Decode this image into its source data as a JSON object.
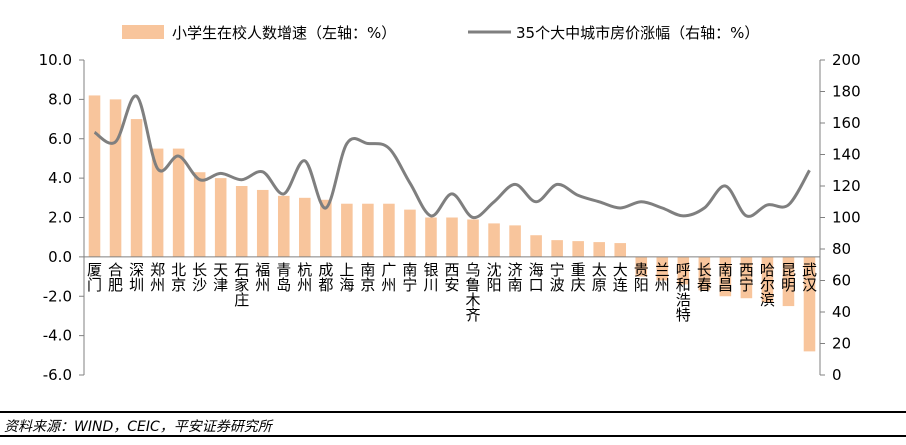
{
  "chart_data": {
    "type": "bar+line",
    "legend": {
      "position": "top",
      "bar_label": "小学生在校人数增速（左轴：%）",
      "line_label": "35个大中城市房价涨幅（右轴：%）"
    },
    "categories": [
      "厦门",
      "合肥",
      "深圳",
      "郑州",
      "北京",
      "长沙",
      "天津",
      "石家庄",
      "福州",
      "青岛",
      "杭州",
      "成都",
      "上海",
      "南京",
      "广州",
      "南宁",
      "银川",
      "西安",
      "乌鲁木齐",
      "沈阳",
      "济南",
      "海口",
      "宁波",
      "重庆",
      "太原",
      "大连",
      "贵阳",
      "兰州",
      "呼和浩特",
      "长春",
      "南昌",
      "西宁",
      "哈尔滨",
      "昆明",
      "武汉"
    ],
    "series": [
      {
        "name": "小学生在校人数增速（左轴：%）",
        "axis": "left",
        "kind": "bar",
        "values": [
          8.2,
          8.0,
          7.0,
          5.5,
          5.5,
          4.3,
          4.0,
          3.6,
          3.4,
          3.1,
          3.0,
          2.9,
          2.7,
          2.7,
          2.7,
          2.4,
          2.0,
          2.0,
          1.9,
          1.7,
          1.6,
          1.1,
          0.85,
          0.8,
          0.75,
          0.7,
          -1.0,
          -1.2,
          -1.4,
          -1.7,
          -2.0,
          -2.1,
          -2.3,
          -2.5,
          -4.8
        ]
      },
      {
        "name": "35个大中城市房价涨幅（右轴：%）",
        "axis": "right",
        "kind": "line",
        "values": [
          154,
          148,
          177,
          131,
          139,
          124,
          128,
          124,
          129,
          115,
          136,
          106,
          147,
          147,
          144,
          122,
          101,
          115,
          100,
          110,
          121,
          110,
          121,
          114,
          110,
          106,
          110,
          106,
          101,
          106,
          120,
          101,
          108,
          108,
          130
        ]
      }
    ],
    "left_axis": {
      "min": -6,
      "max": 10,
      "ticks": [
        "10.0",
        "8.0",
        "6.0",
        "4.0",
        "2.0",
        "0.0",
        "-2.0",
        "-4.0",
        "-6.0"
      ]
    },
    "right_axis": {
      "min": 0,
      "max": 200,
      "ticks": [
        "200",
        "180",
        "160",
        "140",
        "120",
        "100",
        "80",
        "60",
        "40",
        "20",
        "0"
      ]
    },
    "grid": false,
    "colors": {
      "bar": "#F8C59C",
      "line": "#7F7F7F",
      "axis": "#808080"
    }
  },
  "footer": {
    "source": "资料来源：WIND，CEIC，平安证券研究所"
  }
}
